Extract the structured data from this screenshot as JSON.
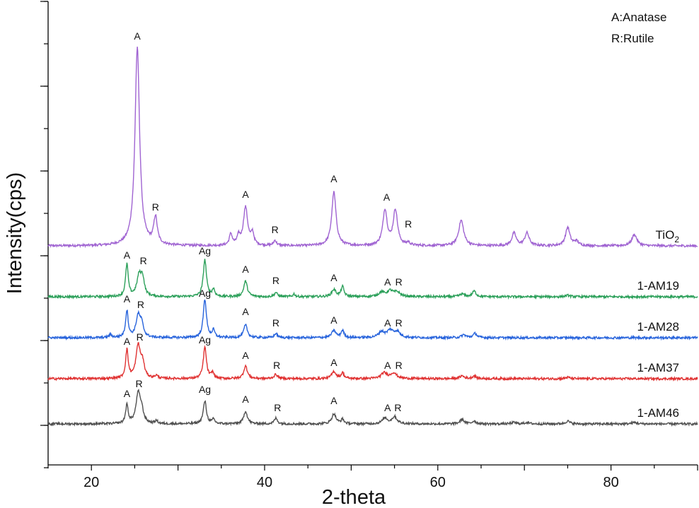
{
  "chart_data": {
    "type": "line",
    "title": "",
    "xlabel": "2-theta",
    "ylabel": "Intensity(cps)",
    "xlim": [
      15,
      90
    ],
    "xticks": [
      20,
      40,
      60,
      80
    ],
    "y_ticks_labeled": false,
    "grid": false,
    "legend": {
      "placement": "top-right",
      "entries": [
        "A:Anatase",
        "R:Rutile"
      ]
    },
    "series": [
      {
        "name": "TiO2",
        "label_main": "TiO",
        "label_sub": "2",
        "color": "#a064d2",
        "baseline": 6.3,
        "peaks": [
          [
            25.3,
            7.0,
            0.32
          ],
          [
            27.4,
            0.95,
            0.25
          ],
          [
            36.1,
            0.4,
            0.2
          ],
          [
            37.0,
            0.3,
            0.2
          ],
          [
            37.8,
            1.35,
            0.3
          ],
          [
            38.6,
            0.4,
            0.2
          ],
          [
            41.2,
            0.18,
            0.2
          ],
          [
            48.0,
            1.9,
            0.3
          ],
          [
            53.9,
            1.25,
            0.3
          ],
          [
            55.1,
            1.25,
            0.3
          ],
          [
            56.6,
            0.1,
            0.2
          ],
          [
            62.7,
            0.9,
            0.35
          ],
          [
            68.8,
            0.45,
            0.3
          ],
          [
            70.3,
            0.45,
            0.3
          ],
          [
            75.0,
            0.65,
            0.3
          ],
          [
            76.0,
            0.15,
            0.3
          ],
          [
            82.7,
            0.4,
            0.35
          ]
        ],
        "annotations": [
          {
            "text": "A",
            "x": 25.3,
            "y": 13.6
          },
          {
            "text": "R",
            "x": 27.4,
            "y": 7.55
          },
          {
            "text": "A",
            "x": 37.8,
            "y": 8.0
          },
          {
            "text": "R",
            "x": 41.2,
            "y": 6.75
          },
          {
            "text": "A",
            "x": 48.0,
            "y": 8.55
          },
          {
            "text": "A",
            "x": 54.1,
            "y": 7.9
          },
          {
            "text": "R",
            "x": 56.6,
            "y": 6.95
          }
        ]
      },
      {
        "name": "1-AM19",
        "color": "#2ca05a",
        "baseline": 4.5,
        "peaks": [
          [
            24.1,
            1.15,
            0.18
          ],
          [
            25.5,
            0.7,
            0.3
          ],
          [
            25.9,
            0.6,
            0.25
          ],
          [
            33.1,
            1.3,
            0.22
          ],
          [
            34.1,
            0.25,
            0.18
          ],
          [
            37.8,
            0.55,
            0.25
          ],
          [
            41.3,
            0.15,
            0.2
          ],
          [
            43.4,
            0.1,
            0.15
          ],
          [
            48.0,
            0.25,
            0.3
          ],
          [
            49.0,
            0.35,
            0.2
          ],
          [
            53.5,
            0.15,
            0.4
          ],
          [
            54.5,
            0.2,
            0.4
          ],
          [
            55.3,
            0.15,
            0.4
          ],
          [
            62.8,
            0.1,
            0.3
          ],
          [
            64.2,
            0.2,
            0.25
          ],
          [
            75.0,
            0.05,
            0.3
          ]
        ],
        "annotations": [
          {
            "text": "A",
            "x": 24.1,
            "y": 5.85
          },
          {
            "text": "R",
            "x": 26.0,
            "y": 5.65
          },
          {
            "text": "Ag",
            "x": 33.1,
            "y": 6.0
          },
          {
            "text": "A",
            "x": 37.8,
            "y": 5.35
          },
          {
            "text": "R",
            "x": 41.3,
            "y": 4.95
          },
          {
            "text": "A",
            "x": 48.0,
            "y": 5.05
          },
          {
            "text": "A",
            "x": 54.2,
            "y": 4.9
          },
          {
            "text": "R",
            "x": 55.5,
            "y": 4.9
          }
        ]
      },
      {
        "name": "1-AM28",
        "color": "#2864dc",
        "baseline": 3.05,
        "peaks": [
          [
            22.2,
            0.1,
            0.2
          ],
          [
            24.1,
            0.95,
            0.18
          ],
          [
            25.4,
            0.75,
            0.3
          ],
          [
            25.8,
            0.4,
            0.25
          ],
          [
            33.1,
            1.35,
            0.22
          ],
          [
            34.1,
            0.25,
            0.18
          ],
          [
            37.8,
            0.45,
            0.25
          ],
          [
            41.3,
            0.15,
            0.2
          ],
          [
            48.0,
            0.25,
            0.3
          ],
          [
            49.0,
            0.25,
            0.2
          ],
          [
            53.5,
            0.2,
            0.4
          ],
          [
            54.5,
            0.25,
            0.4
          ],
          [
            55.3,
            0.2,
            0.4
          ],
          [
            63.0,
            0.1,
            0.3
          ],
          [
            64.3,
            0.15,
            0.25
          ]
        ],
        "annotations": [
          {
            "text": "A",
            "x": 24.1,
            "y": 4.3
          },
          {
            "text": "R",
            "x": 25.7,
            "y": 4.1
          },
          {
            "text": "Ag",
            "x": 33.1,
            "y": 4.5
          },
          {
            "text": "A",
            "x": 37.8,
            "y": 3.85
          },
          {
            "text": "R",
            "x": 41.3,
            "y": 3.45
          },
          {
            "text": "A",
            "x": 48.0,
            "y": 3.55
          },
          {
            "text": "A",
            "x": 54.2,
            "y": 3.45
          },
          {
            "text": "R",
            "x": 55.5,
            "y": 3.45
          }
        ]
      },
      {
        "name": "1-AM37",
        "color": "#e03232",
        "baseline": 1.6,
        "peaks": [
          [
            24.1,
            1.0,
            0.18
          ],
          [
            25.4,
            1.15,
            0.3
          ],
          [
            25.9,
            0.5,
            0.25
          ],
          [
            27.5,
            0.1,
            0.2
          ],
          [
            33.1,
            1.1,
            0.22
          ],
          [
            34.0,
            0.2,
            0.18
          ],
          [
            37.8,
            0.45,
            0.25
          ],
          [
            41.3,
            0.15,
            0.25
          ],
          [
            48.0,
            0.25,
            0.3
          ],
          [
            49.0,
            0.2,
            0.2
          ],
          [
            53.8,
            0.2,
            0.4
          ],
          [
            54.9,
            0.2,
            0.4
          ],
          [
            62.8,
            0.1,
            0.3
          ],
          [
            64.2,
            0.1,
            0.25
          ],
          [
            75.0,
            0.05,
            0.3
          ]
        ],
        "annotations": [
          {
            "text": "A",
            "x": 24.1,
            "y": 2.8
          },
          {
            "text": "R",
            "x": 25.6,
            "y": 2.95
          },
          {
            "text": "Ag",
            "x": 33.1,
            "y": 2.85
          },
          {
            "text": "A",
            "x": 37.8,
            "y": 2.3
          },
          {
            "text": "R",
            "x": 41.4,
            "y": 1.95
          },
          {
            "text": "A",
            "x": 48.0,
            "y": 2.05
          },
          {
            "text": "A",
            "x": 54.2,
            "y": 1.95
          },
          {
            "text": "R",
            "x": 55.5,
            "y": 1.95
          }
        ]
      },
      {
        "name": "1-AM46",
        "color": "#505050",
        "baseline": 0.0,
        "peaks": [
          [
            24.1,
            0.65,
            0.18
          ],
          [
            25.4,
            1.05,
            0.3
          ],
          [
            25.8,
            0.4,
            0.25
          ],
          [
            27.5,
            0.1,
            0.2
          ],
          [
            33.1,
            0.8,
            0.22
          ],
          [
            34.1,
            0.15,
            0.18
          ],
          [
            37.8,
            0.45,
            0.25
          ],
          [
            41.3,
            0.2,
            0.22
          ],
          [
            48.0,
            0.35,
            0.3
          ],
          [
            49.0,
            0.15,
            0.2
          ],
          [
            53.9,
            0.2,
            0.35
          ],
          [
            55.0,
            0.25,
            0.35
          ],
          [
            62.8,
            0.15,
            0.3
          ],
          [
            64.2,
            0.1,
            0.25
          ],
          [
            68.8,
            0.05,
            0.3
          ],
          [
            70.3,
            0.05,
            0.3
          ],
          [
            75.0,
            0.1,
            0.3
          ],
          [
            82.7,
            0.05,
            0.35
          ]
        ],
        "annotations": [
          {
            "text": "A",
            "x": 24.1,
            "y": 0.95
          },
          {
            "text": "R",
            "x": 25.5,
            "y": 1.3
          },
          {
            "text": "Ag",
            "x": 33.1,
            "y": 1.1
          },
          {
            "text": "A",
            "x": 37.8,
            "y": 0.75
          },
          {
            "text": "R",
            "x": 41.5,
            "y": 0.45
          },
          {
            "text": "A",
            "x": 48.0,
            "y": 0.7
          },
          {
            "text": "A",
            "x": 54.2,
            "y": 0.45
          },
          {
            "text": "R",
            "x": 55.4,
            "y": 0.45
          }
        ]
      }
    ]
  }
}
